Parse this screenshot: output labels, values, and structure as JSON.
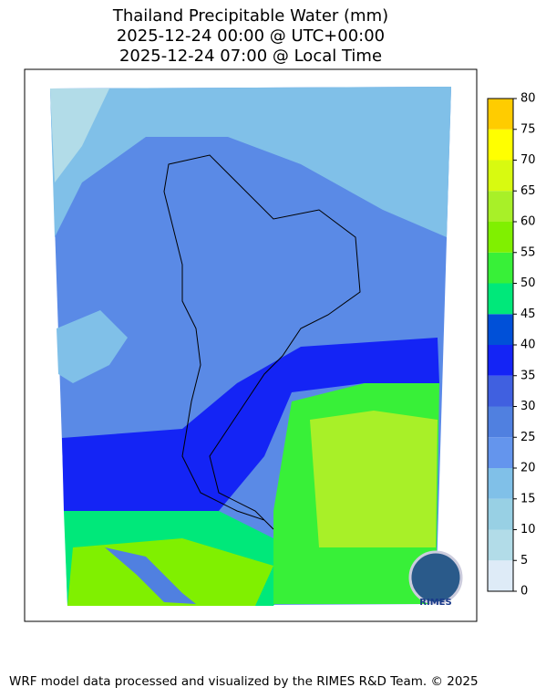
{
  "title": [
    "Thailand Precipitable Water (mm)",
    "2025-12-24 00:00 @ UTC+00:00",
    "2025-12-24 07:00 @ Local Time"
  ],
  "colorbar": {
    "lim": [
      0,
      80
    ],
    "ticks": [
      0,
      5,
      10,
      15,
      20,
      25,
      30,
      35,
      40,
      45,
      50,
      55,
      60,
      65,
      70,
      75,
      80
    ],
    "colors": [
      "#deebf7",
      "#b2dce8",
      "#98d0e4",
      "#80c0e8",
      "#6495ed",
      "#5080e0",
      "#4060e0",
      "#1424f5",
      "#0050d8",
      "#00e87a",
      "#38f038",
      "#80f000",
      "#a8f028",
      "#d8fa10",
      "#ffff00",
      "#ffcc00"
    ]
  },
  "logo_text": "RIMES",
  "footer": "WRF model data processed and visualized by the RIMES R&D Team. © 2025"
}
